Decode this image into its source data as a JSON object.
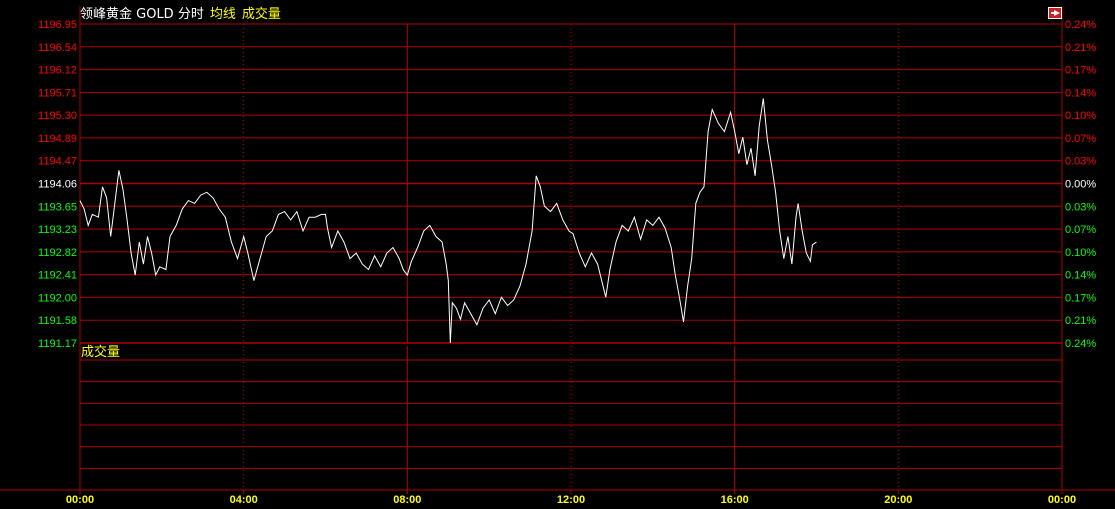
{
  "header": {
    "title": "领峰黄金 GOLD 分时",
    "avg_label": "均线",
    "volume_label": "成交量"
  },
  "volume_panel": {
    "label": "成交量"
  },
  "colors": {
    "background": "#000000",
    "grid": "#b00000",
    "up": "#ff0000",
    "down": "#00ff00",
    "neutral": "#ffffff",
    "time_label": "#ffff00",
    "price_line": "#ffffff"
  },
  "icons": {
    "exit": "exit-icon"
  },
  "chart_data": {
    "type": "line",
    "title": "领峰黄金 GOLD 分时",
    "reference_price": 1194.06,
    "ylim": [
      1191.17,
      1196.95
    ],
    "y_ticks_left": [
      "1196.95",
      "1196.54",
      "1196.12",
      "1195.71",
      "1195.30",
      "1194.89",
      "1194.47",
      "1194.06",
      "1193.65",
      "1193.23",
      "1192.82",
      "1192.41",
      "1192.00",
      "1191.58",
      "1191.17"
    ],
    "y_ticks_right": [
      "0.24%",
      "0.21%",
      "0.17%",
      "0.14%",
      "0.10%",
      "0.07%",
      "0.03%",
      "0.00%",
      "0.03%",
      "0.07%",
      "0.10%",
      "0.14%",
      "0.17%",
      "0.21%",
      "0.24%"
    ],
    "x_ticks": [
      "00:00",
      "04:00",
      "08:00",
      "12:00",
      "16:00",
      "20:00",
      "00:00"
    ],
    "x_tick_hours": [
      0,
      4,
      8,
      12,
      16,
      20,
      24
    ],
    "xlim_hours": [
      0,
      24
    ],
    "grid": true,
    "series": [
      {
        "values": [
          [
            0.0,
            1193.75
          ],
          [
            0.1,
            1193.6
          ],
          [
            0.2,
            1193.3
          ],
          [
            0.3,
            1193.5
          ],
          [
            0.45,
            1193.45
          ],
          [
            0.55,
            1194.0
          ],
          [
            0.65,
            1193.8
          ],
          [
            0.75,
            1193.1
          ],
          [
            0.85,
            1193.7
          ],
          [
            0.95,
            1194.3
          ],
          [
            1.05,
            1193.95
          ],
          [
            1.15,
            1193.4
          ],
          [
            1.25,
            1192.8
          ],
          [
            1.35,
            1192.4
          ],
          [
            1.45,
            1193.0
          ],
          [
            1.55,
            1192.6
          ],
          [
            1.65,
            1193.1
          ],
          [
            1.75,
            1192.8
          ],
          [
            1.85,
            1192.4
          ],
          [
            1.95,
            1192.55
          ],
          [
            2.1,
            1192.5
          ],
          [
            2.2,
            1193.1
          ],
          [
            2.35,
            1193.3
          ],
          [
            2.5,
            1193.6
          ],
          [
            2.65,
            1193.75
          ],
          [
            2.8,
            1193.7
          ],
          [
            2.95,
            1193.85
          ],
          [
            3.1,
            1193.9
          ],
          [
            3.25,
            1193.8
          ],
          [
            3.4,
            1193.6
          ],
          [
            3.55,
            1193.45
          ],
          [
            3.7,
            1193.0
          ],
          [
            3.85,
            1192.7
          ],
          [
            4.0,
            1193.1
          ],
          [
            4.1,
            1192.8
          ],
          [
            4.25,
            1192.3
          ],
          [
            4.4,
            1192.7
          ],
          [
            4.55,
            1193.1
          ],
          [
            4.7,
            1193.2
          ],
          [
            4.85,
            1193.5
          ],
          [
            5.0,
            1193.55
          ],
          [
            5.15,
            1193.4
          ],
          [
            5.3,
            1193.55
          ],
          [
            5.45,
            1193.2
          ],
          [
            5.6,
            1193.45
          ],
          [
            5.75,
            1193.45
          ],
          [
            5.9,
            1193.5
          ],
          [
            6.0,
            1193.5
          ],
          [
            6.05,
            1193.25
          ],
          [
            6.15,
            1192.9
          ],
          [
            6.3,
            1193.2
          ],
          [
            6.45,
            1193.0
          ],
          [
            6.6,
            1192.7
          ],
          [
            6.75,
            1192.8
          ],
          [
            6.9,
            1192.6
          ],
          [
            7.05,
            1192.5
          ],
          [
            7.2,
            1192.75
          ],
          [
            7.35,
            1192.55
          ],
          [
            7.5,
            1192.8
          ],
          [
            7.65,
            1192.9
          ],
          [
            7.8,
            1192.7
          ],
          [
            7.9,
            1192.5
          ],
          [
            8.0,
            1192.4
          ],
          [
            8.1,
            1192.65
          ],
          [
            8.25,
            1192.9
          ],
          [
            8.4,
            1193.2
          ],
          [
            8.55,
            1193.3
          ],
          [
            8.7,
            1193.1
          ],
          [
            8.85,
            1193.0
          ],
          [
            8.95,
            1192.6
          ],
          [
            9.0,
            1192.3
          ],
          [
            9.05,
            1191.17
          ],
          [
            9.1,
            1191.9
          ],
          [
            9.2,
            1191.8
          ],
          [
            9.3,
            1191.6
          ],
          [
            9.4,
            1191.9
          ],
          [
            9.55,
            1191.7
          ],
          [
            9.7,
            1191.5
          ],
          [
            9.85,
            1191.8
          ],
          [
            10.0,
            1191.95
          ],
          [
            10.15,
            1191.7
          ],
          [
            10.3,
            1192.0
          ],
          [
            10.45,
            1191.85
          ],
          [
            10.6,
            1191.95
          ],
          [
            10.75,
            1192.2
          ],
          [
            10.9,
            1192.6
          ],
          [
            11.05,
            1193.2
          ],
          [
            11.15,
            1194.2
          ],
          [
            11.25,
            1194.0
          ],
          [
            11.35,
            1193.65
          ],
          [
            11.5,
            1193.55
          ],
          [
            11.65,
            1193.7
          ],
          [
            11.8,
            1193.4
          ],
          [
            11.95,
            1193.2
          ],
          [
            12.05,
            1193.15
          ],
          [
            12.2,
            1192.8
          ],
          [
            12.35,
            1192.55
          ],
          [
            12.5,
            1192.8
          ],
          [
            12.65,
            1192.6
          ],
          [
            12.75,
            1192.3
          ],
          [
            12.85,
            1192.0
          ],
          [
            12.95,
            1192.5
          ],
          [
            13.1,
            1193.0
          ],
          [
            13.25,
            1193.3
          ],
          [
            13.4,
            1193.2
          ],
          [
            13.55,
            1193.45
          ],
          [
            13.7,
            1193.05
          ],
          [
            13.85,
            1193.4
          ],
          [
            14.0,
            1193.3
          ],
          [
            14.15,
            1193.45
          ],
          [
            14.3,
            1193.25
          ],
          [
            14.45,
            1192.9
          ],
          [
            14.55,
            1192.4
          ],
          [
            14.65,
            1192.0
          ],
          [
            14.75,
            1191.55
          ],
          [
            14.85,
            1192.2
          ],
          [
            14.95,
            1192.7
          ],
          [
            15.05,
            1193.7
          ],
          [
            15.15,
            1193.9
          ],
          [
            15.25,
            1194.0
          ],
          [
            15.35,
            1195.0
          ],
          [
            15.45,
            1195.4
          ],
          [
            15.6,
            1195.15
          ],
          [
            15.75,
            1195.0
          ],
          [
            15.9,
            1195.35
          ],
          [
            16.0,
            1195.0
          ],
          [
            16.1,
            1194.6
          ],
          [
            16.2,
            1194.9
          ],
          [
            16.3,
            1194.4
          ],
          [
            16.4,
            1194.7
          ],
          [
            16.5,
            1194.2
          ],
          [
            16.6,
            1195.1
          ],
          [
            16.7,
            1195.6
          ],
          [
            16.8,
            1194.85
          ],
          [
            16.9,
            1194.4
          ],
          [
            17.0,
            1193.9
          ],
          [
            17.1,
            1193.2
          ],
          [
            17.2,
            1192.7
          ],
          [
            17.3,
            1193.1
          ],
          [
            17.4,
            1192.6
          ],
          [
            17.5,
            1193.45
          ],
          [
            17.55,
            1193.7
          ],
          [
            17.65,
            1193.2
          ],
          [
            17.75,
            1192.8
          ],
          [
            17.85,
            1192.65
          ],
          [
            17.9,
            1192.95
          ],
          [
            18.0,
            1193.0
          ]
        ]
      }
    ]
  }
}
